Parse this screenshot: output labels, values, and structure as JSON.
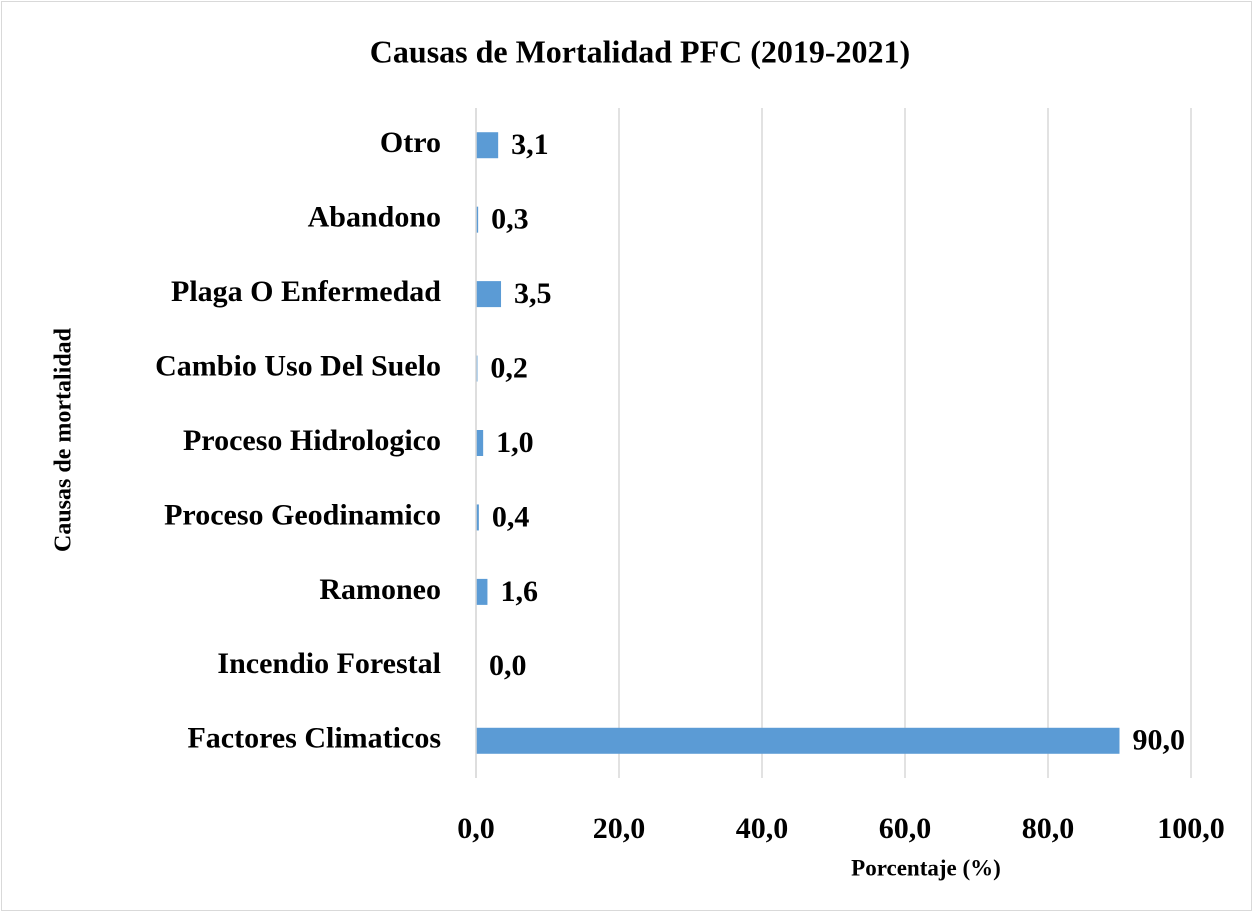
{
  "chart_data": {
    "type": "bar",
    "orientation": "horizontal",
    "title": "Causas de Mortalidad PFC (2019-2021)",
    "x_label": "Porcentaje (%)",
    "y_label": "Causas de mortalidad",
    "categories": [
      "Factores Climaticos",
      "Incendio Forestal",
      "Ramoneo",
      "Proceso Geodinamico",
      "Proceso Hidrologico",
      "Cambio Uso Del Suelo",
      "Plaga O Enfermedad",
      "Abandono",
      "Otro"
    ],
    "values": [
      90.0,
      0.0,
      1.6,
      0.4,
      1.0,
      0.2,
      3.5,
      0.3,
      3.1
    ],
    "value_labels": [
      "90,0",
      "0,0",
      "1,6",
      "0,4",
      "1,0",
      "0,2",
      "3,5",
      "0,3",
      "3,1"
    ],
    "color": "#5b9bd5",
    "xlim": [
      0,
      100
    ],
    "xticks": [
      {
        "value": 0,
        "label": "0,0"
      },
      {
        "value": 20,
        "label": "20,0"
      },
      {
        "value": 40,
        "label": "40,0"
      },
      {
        "value": 60,
        "label": "60,0"
      },
      {
        "value": 80,
        "label": "80,0"
      },
      {
        "value": 100,
        "label": "100,0"
      }
    ],
    "grid": true
  }
}
